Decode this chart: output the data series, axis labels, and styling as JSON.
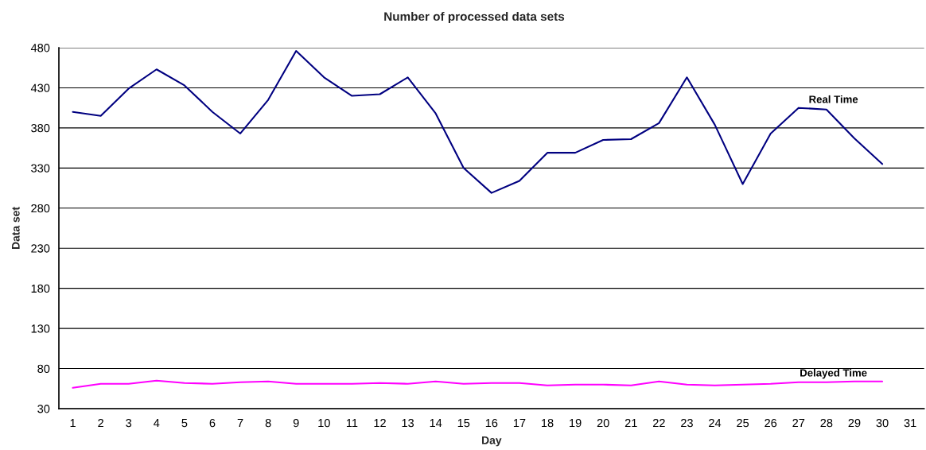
{
  "chart_data": {
    "type": "line",
    "title": "Number of processed data sets",
    "xlabel": "Day",
    "ylabel": "Data set",
    "categories": [
      "1",
      "2",
      "3",
      "4",
      "5",
      "6",
      "7",
      "8",
      "9",
      "10",
      "11",
      "12",
      "13",
      "14",
      "15",
      "16",
      "17",
      "18",
      "19",
      "20",
      "21",
      "22",
      "23",
      "24",
      "25",
      "26",
      "27",
      "28",
      "29",
      "30",
      "31"
    ],
    "series": [
      {
        "name": "Real Time",
        "color": "#000080",
        "values": [
          400,
          395,
          429,
          453,
          433,
          400,
          373,
          415,
          476,
          443,
          420,
          422,
          443,
          398,
          330,
          299,
          314,
          349,
          349,
          365,
          366,
          386,
          443,
          384,
          310,
          373,
          405,
          403,
          367,
          335,
          null
        ]
      },
      {
        "name": "Delayed Time",
        "color": "#ff00ff",
        "values": [
          56,
          61,
          61,
          65,
          62,
          61,
          63,
          64,
          61,
          61,
          61,
          62,
          61,
          64,
          61,
          62,
          62,
          59,
          60,
          60,
          59,
          64,
          60,
          59,
          60,
          61,
          63,
          63,
          64,
          64,
          null
        ]
      }
    ],
    "ylim": [
      30,
      480
    ],
    "yticks": [
      30,
      80,
      130,
      180,
      230,
      280,
      330,
      380,
      430,
      480
    ],
    "grid": "y",
    "legend": false
  }
}
